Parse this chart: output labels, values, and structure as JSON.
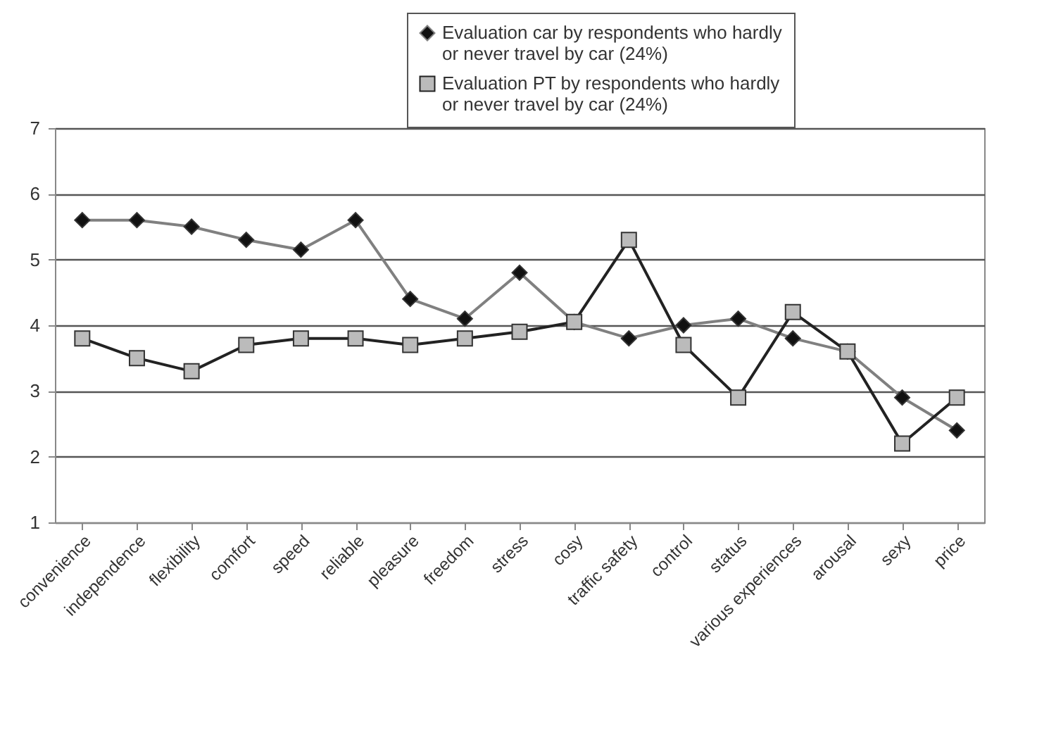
{
  "chart_data": {
    "type": "line",
    "categories": [
      "convenience",
      "independence",
      "flexibility",
      "comfort",
      "speed",
      "reliable",
      "pleasure",
      "freedom",
      "stress",
      "cosy",
      "traffic safety",
      "control",
      "status",
      "various experiences",
      "arousal",
      "sexy",
      "price"
    ],
    "series": [
      {
        "name": "Evaluation car by respondents who hardly or never travel by car (24%)",
        "color": "#808080",
        "marker": "diamond",
        "values": [
          5.6,
          5.6,
          5.5,
          5.3,
          5.15,
          5.6,
          4.4,
          4.1,
          4.8,
          4.05,
          3.8,
          4.0,
          4.1,
          3.8,
          3.6,
          2.9,
          2.4
        ]
      },
      {
        "name": "Evaluation PT by respondents who hardly or never travel by car (24%)",
        "color": "#222222",
        "marker": "square",
        "values": [
          3.8,
          3.5,
          3.3,
          3.7,
          3.8,
          3.8,
          3.7,
          3.8,
          3.9,
          4.05,
          5.3,
          3.7,
          2.9,
          4.2,
          3.6,
          2.2,
          2.9
        ]
      }
    ],
    "ylim": [
      1,
      7
    ],
    "yticks": [
      1,
      2,
      3,
      4,
      5,
      6,
      7
    ],
    "grid": "y",
    "legend": "top right"
  }
}
